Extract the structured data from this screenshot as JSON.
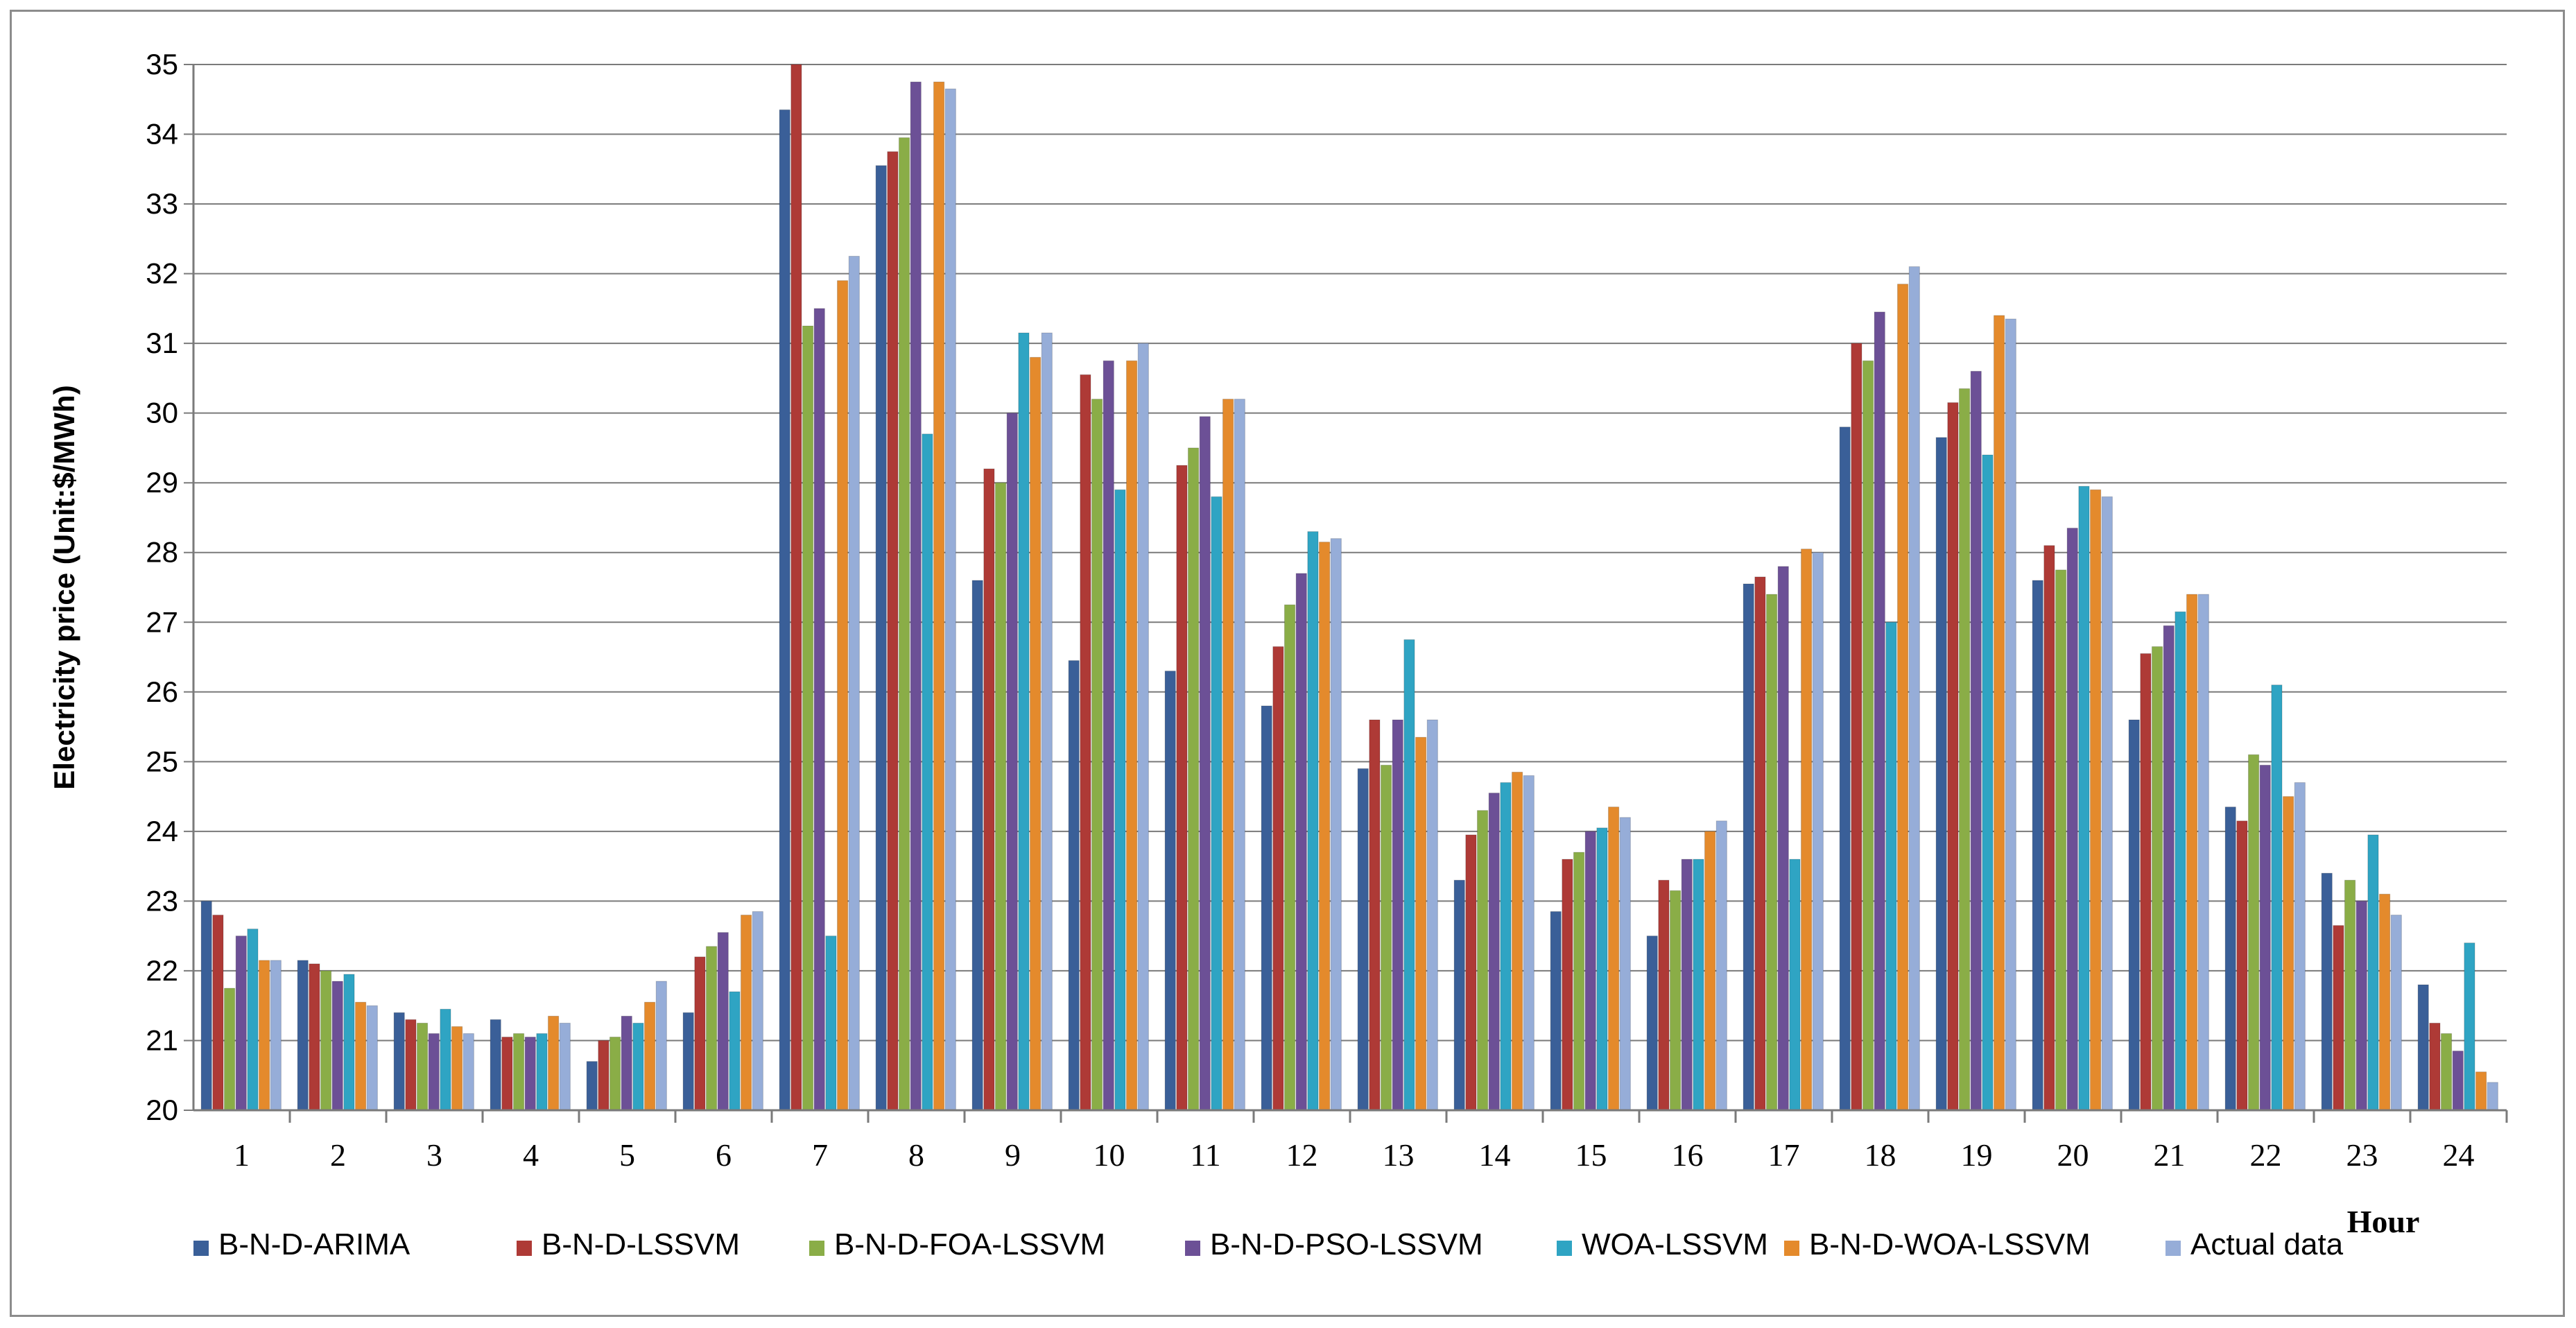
{
  "chart_data": {
    "type": "bar",
    "title": "",
    "xlabel": "Hour",
    "ylabel": "Electricity price (Unit:$/MWh)",
    "ylim": [
      20,
      35
    ],
    "yticks": [
      "20",
      "21",
      "22",
      "23",
      "24",
      "25",
      "26",
      "27",
      "28",
      "29",
      "30",
      "31",
      "32",
      "33",
      "34",
      "35"
    ],
    "grid": true,
    "legend_position": "bottom",
    "categories": [
      "1",
      "2",
      "3",
      "4",
      "5",
      "6",
      "7",
      "8",
      "9",
      "10",
      "11",
      "12",
      "13",
      "14",
      "15",
      "16",
      "17",
      "18",
      "19",
      "20",
      "21",
      "22",
      "23",
      "24"
    ],
    "series": [
      {
        "name": "B-N-D-ARIMA",
        "color": "#3a5f98",
        "values": [
          23.0,
          22.15,
          21.4,
          21.3,
          20.7,
          21.4,
          34.35,
          33.55,
          27.6,
          26.45,
          26.3,
          25.8,
          24.9,
          23.3,
          22.85,
          22.5,
          27.55,
          29.8,
          29.65,
          27.6,
          25.6,
          24.35,
          23.4,
          21.8
        ]
      },
      {
        "name": "B-N-D-LSSVM",
        "color": "#ae3a36",
        "values": [
          22.8,
          22.1,
          21.3,
          21.05,
          21.0,
          22.2,
          35.0,
          33.75,
          29.2,
          30.55,
          29.25,
          26.65,
          25.6,
          23.95,
          23.6,
          23.3,
          27.65,
          31.0,
          30.15,
          28.1,
          26.55,
          24.15,
          22.65,
          21.25
        ]
      },
      {
        "name": "B-N-D-FOA-LSSVM",
        "color": "#8aad47",
        "values": [
          21.75,
          22.0,
          21.25,
          21.1,
          21.05,
          22.35,
          31.25,
          33.95,
          29.0,
          30.2,
          29.5,
          27.25,
          24.95,
          24.3,
          23.7,
          23.15,
          27.4,
          30.75,
          30.35,
          27.75,
          26.65,
          25.1,
          23.3,
          21.1
        ]
      },
      {
        "name": "B-N-D-PSO-LSSVM",
        "color": "#6c5096",
        "values": [
          22.5,
          21.85,
          21.1,
          21.05,
          21.35,
          22.55,
          31.5,
          34.75,
          30.0,
          30.75,
          29.95,
          27.7,
          25.6,
          24.55,
          24.0,
          23.6,
          27.8,
          31.45,
          30.6,
          28.35,
          26.95,
          24.95,
          23.0,
          20.85
        ]
      },
      {
        "name": "WOA-LSSVM",
        "color": "#2fa4c3",
        "values": [
          22.6,
          21.95,
          21.45,
          21.1,
          21.25,
          21.7,
          22.5,
          29.7,
          31.15,
          28.9,
          28.8,
          28.3,
          26.75,
          24.7,
          24.05,
          23.6,
          23.6,
          27.0,
          29.4,
          28.95,
          27.15,
          26.1,
          23.95,
          22.4
        ]
      },
      {
        "name": "B-N-D-WOA-LSSVM",
        "color": "#e48a2c",
        "values": [
          22.15,
          21.55,
          21.2,
          21.35,
          21.55,
          22.8,
          31.9,
          34.75,
          30.8,
          30.75,
          30.2,
          28.15,
          25.35,
          24.85,
          24.35,
          24.0,
          28.05,
          31.85,
          31.4,
          28.9,
          27.4,
          24.5,
          23.1,
          20.55
        ]
      },
      {
        "name": "Actual data",
        "color": "#96add8",
        "values": [
          22.15,
          21.5,
          21.1,
          21.25,
          21.85,
          22.85,
          32.25,
          34.65,
          31.15,
          31.0,
          30.2,
          28.2,
          25.6,
          24.8,
          24.2,
          24.15,
          28.0,
          32.1,
          31.35,
          28.8,
          27.4,
          24.7,
          22.8,
          20.4
        ]
      }
    ]
  }
}
